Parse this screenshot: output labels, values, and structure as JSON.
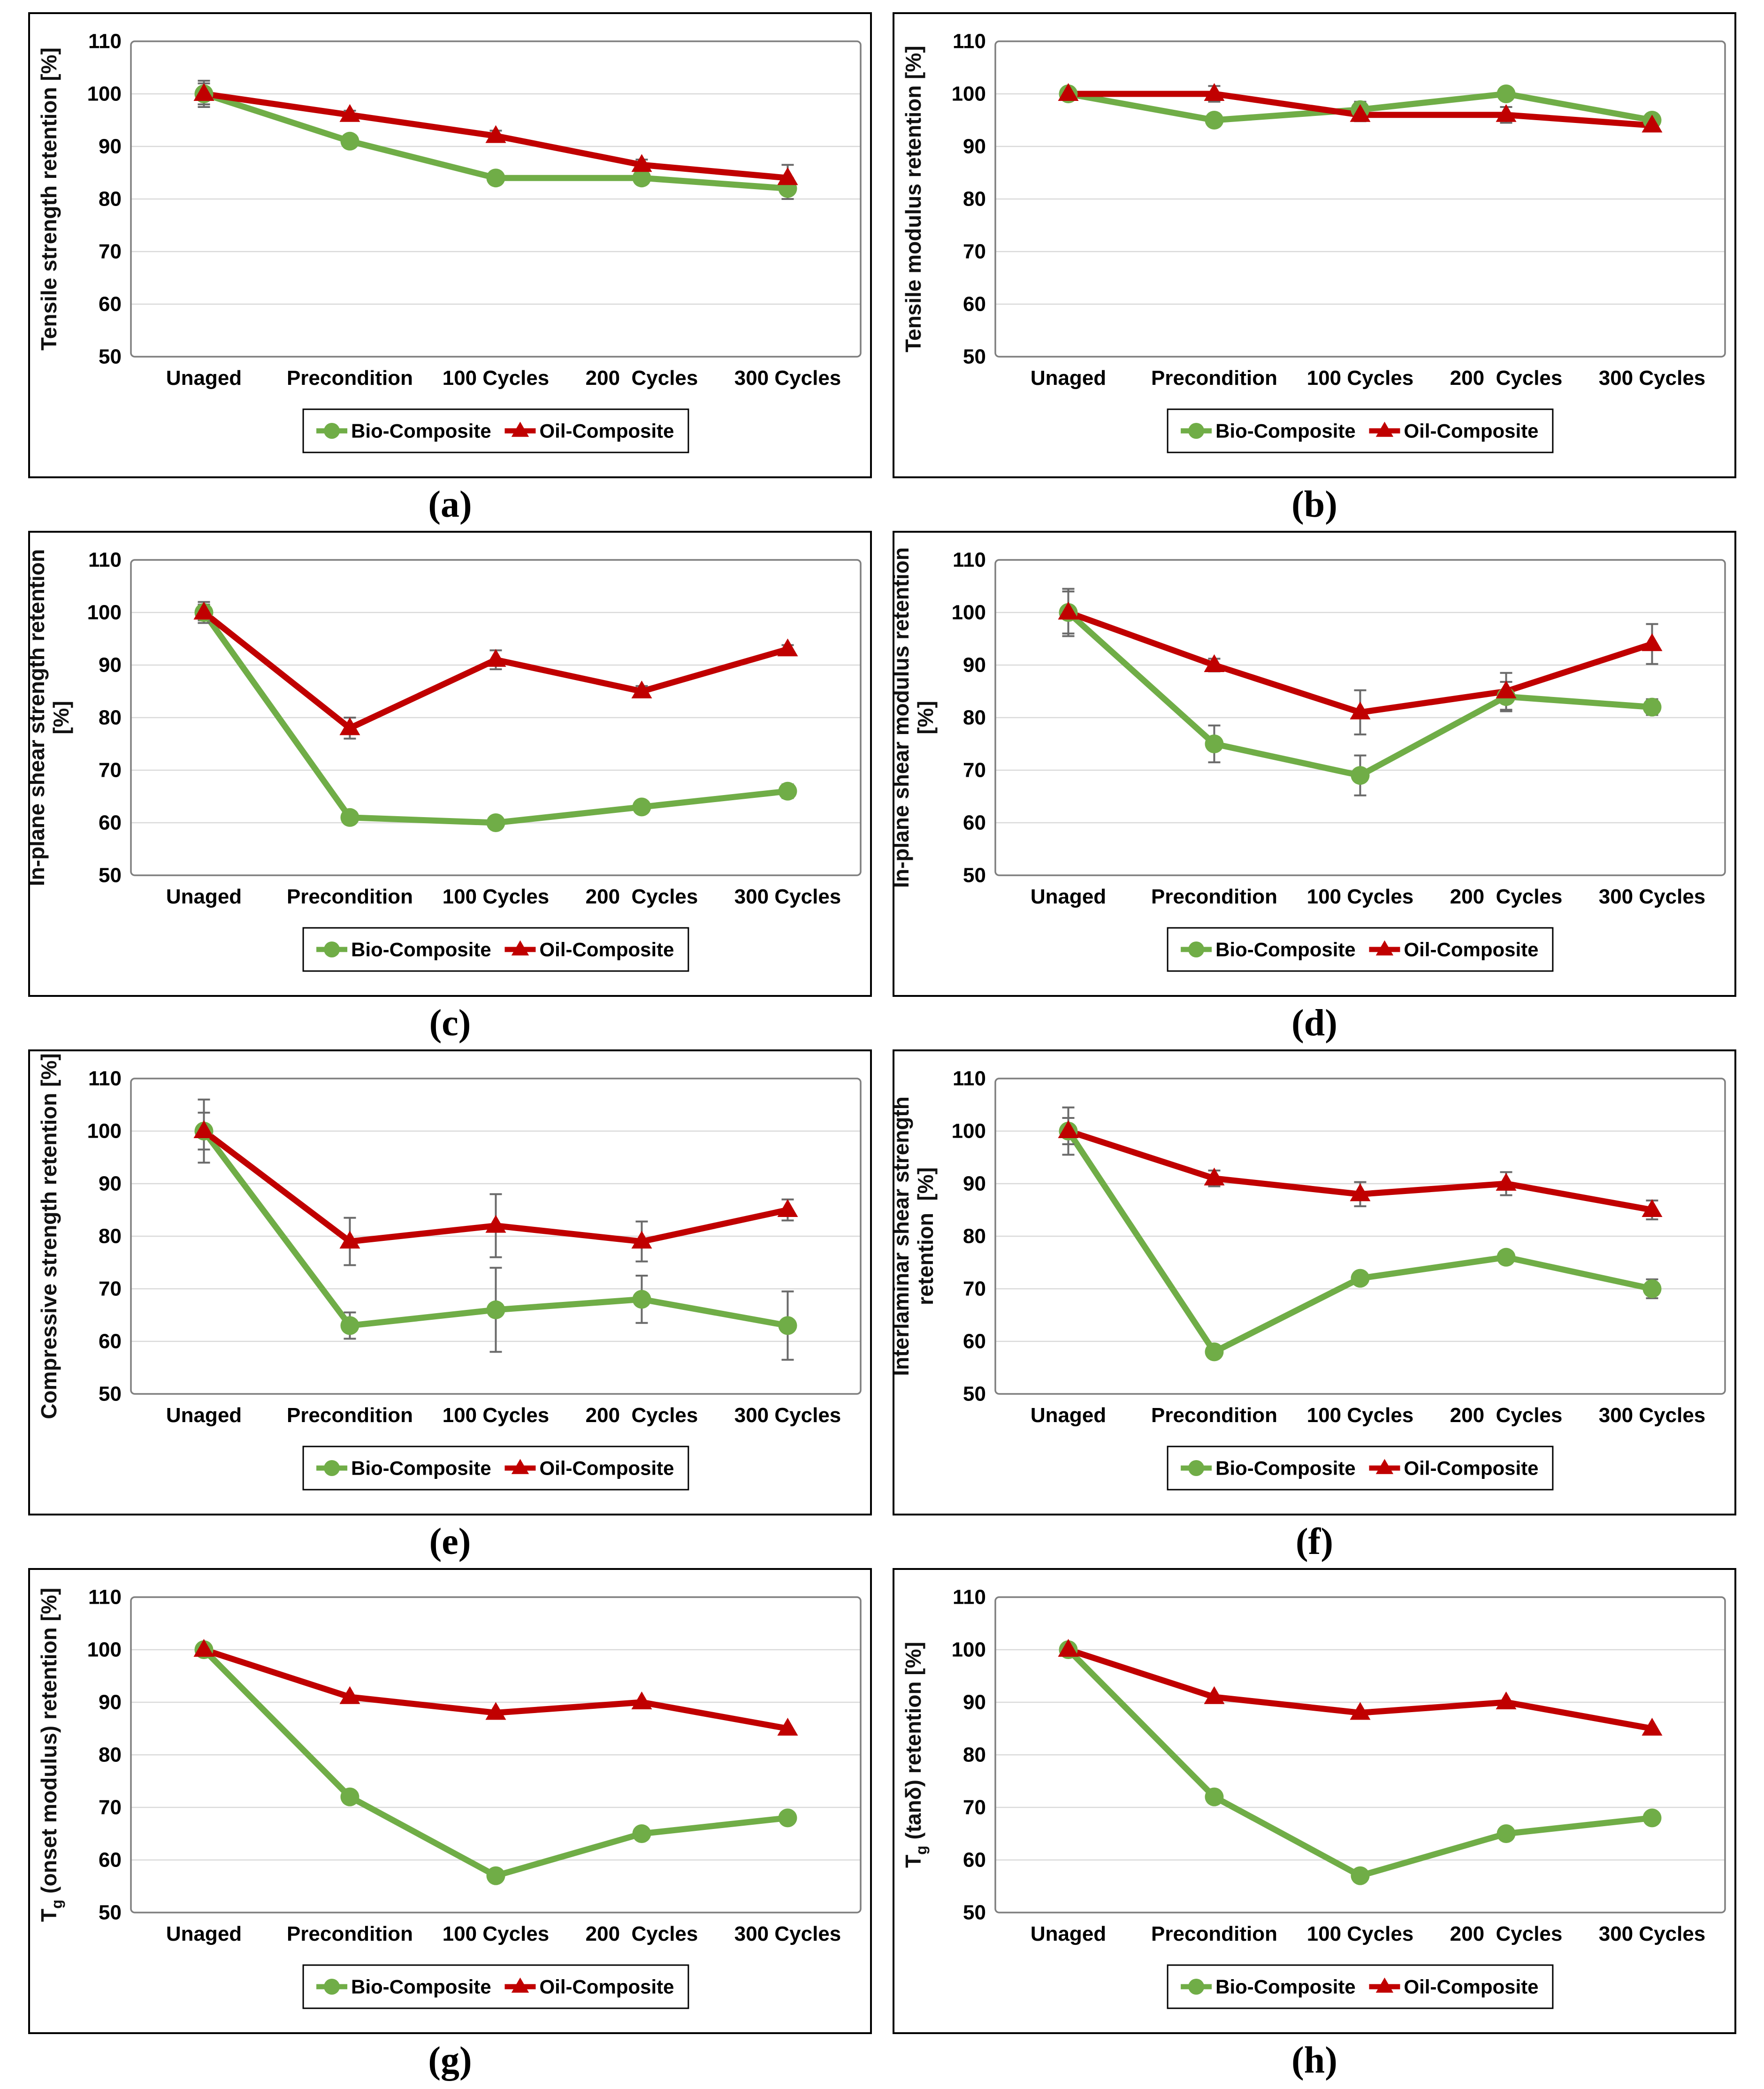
{
  "colors": {
    "bio": "#70AD47",
    "oil": "#C00000",
    "gridline": "#D9D9D9",
    "frame": "#7F7F7F",
    "error_bar": "#6A6A6A",
    "panel_border": "#000000"
  },
  "chart_data": [
    {
      "type": "line",
      "caption": "(a)",
      "ylabel": [
        "Tensile strength retention [%]"
      ],
      "ylim": [
        50,
        110
      ],
      "yticks": [
        50,
        60,
        70,
        80,
        90,
        100,
        110
      ],
      "grid": "horizontal",
      "legend_position": "bottom",
      "categories": [
        "Unaged",
        "Precondition",
        "100 Cycles",
        "200  Cycles",
        "300 Cycles"
      ],
      "series": [
        {
          "name": "Bio-Composite",
          "color": "bio",
          "marker": "circle",
          "values": [
            100,
            91,
            84,
            84,
            82
          ],
          "errors": [
            2.5,
            1,
            1.2,
            1,
            2
          ]
        },
        {
          "name": "Oil-Composite",
          "color": "oil",
          "marker": "triangle",
          "values": [
            100,
            96,
            92,
            86.5,
            84
          ],
          "errors": [
            2,
            0.8,
            1,
            1,
            2.5
          ]
        }
      ]
    },
    {
      "type": "line",
      "caption": "(b)",
      "ylabel": [
        "Tensile modulus retention [%]"
      ],
      "ylim": [
        50,
        110
      ],
      "yticks": [
        50,
        60,
        70,
        80,
        90,
        100,
        110
      ],
      "grid": "horizontal",
      "legend_position": "bottom",
      "categories": [
        "Unaged",
        "Precondition",
        "100 Cycles",
        "200  Cycles",
        "300 Cycles"
      ],
      "series": [
        {
          "name": "Bio-Composite",
          "color": "bio",
          "marker": "circle",
          "values": [
            100,
            95,
            97,
            100,
            95
          ],
          "errors": [
            1,
            1.2,
            1.5,
            1,
            1
          ]
        },
        {
          "name": "Oil-Composite",
          "color": "oil",
          "marker": "triangle",
          "values": [
            100,
            100,
            96,
            96,
            94
          ],
          "errors": [
            1,
            1.5,
            1.2,
            1.5,
            1
          ]
        }
      ]
    },
    {
      "type": "line",
      "caption": "(c)",
      "ylabel": [
        "In-plane shear strength retention",
        "[%]"
      ],
      "ylim": [
        50,
        110
      ],
      "yticks": [
        50,
        60,
        70,
        80,
        90,
        100,
        110
      ],
      "grid": "horizontal",
      "legend_position": "bottom",
      "categories": [
        "Unaged",
        "Precondition",
        "100 Cycles",
        "200  Cycles",
        "300 Cycles"
      ],
      "series": [
        {
          "name": "Bio-Composite",
          "color": "bio",
          "marker": "circle",
          "values": [
            100,
            61,
            60,
            63,
            66
          ],
          "errors": [
            2,
            1,
            0.8,
            0.8,
            1.3
          ]
        },
        {
          "name": "Oil-Composite",
          "color": "oil",
          "marker": "triangle",
          "values": [
            100,
            78,
            91,
            85,
            93
          ],
          "errors": [
            1.5,
            2,
            1.8,
            1,
            0.8
          ]
        }
      ]
    },
    {
      "type": "line",
      "caption": "(d)",
      "ylabel": [
        "In-plane shear modulus retention",
        "[%]"
      ],
      "ylim": [
        50,
        110
      ],
      "yticks": [
        50,
        60,
        70,
        80,
        90,
        100,
        110
      ],
      "grid": "horizontal",
      "legend_position": "bottom",
      "categories": [
        "Unaged",
        "Precondition",
        "100 Cycles",
        "200  Cycles",
        "300 Cycles"
      ],
      "series": [
        {
          "name": "Bio-Composite",
          "color": "bio",
          "marker": "circle",
          "values": [
            100,
            75,
            69,
            84,
            82
          ],
          "errors": [
            4.5,
            3.5,
            3.8,
            2.8,
            1.5
          ]
        },
        {
          "name": "Oil-Composite",
          "color": "oil",
          "marker": "triangle",
          "values": [
            100,
            90,
            81,
            85,
            94
          ],
          "errors": [
            4,
            1.2,
            4.2,
            3.5,
            3.8
          ]
        }
      ]
    },
    {
      "type": "line",
      "caption": "(e)",
      "ylabel": [
        "Compressive strength retention [%]"
      ],
      "ylim": [
        50,
        110
      ],
      "yticks": [
        50,
        60,
        70,
        80,
        90,
        100,
        110
      ],
      "grid": "horizontal",
      "legend_position": "bottom",
      "categories": [
        "Unaged",
        "Precondition",
        "100 Cycles",
        "200  Cycles",
        "300 Cycles"
      ],
      "series": [
        {
          "name": "Bio-Composite",
          "color": "bio",
          "marker": "circle",
          "values": [
            100,
            63,
            66,
            68,
            63
          ],
          "errors": [
            6,
            2.5,
            8,
            4.5,
            6.5
          ]
        },
        {
          "name": "Oil-Composite",
          "color": "oil",
          "marker": "triangle",
          "values": [
            100,
            79,
            82,
            79,
            85
          ],
          "errors": [
            3.5,
            4.5,
            6,
            3.8,
            2
          ]
        }
      ]
    },
    {
      "type": "line",
      "caption": "(f)",
      "ylabel": [
        "Interlaminar shear strength",
        "retention  [%]"
      ],
      "ylim": [
        50,
        110
      ],
      "yticks": [
        50,
        60,
        70,
        80,
        90,
        100,
        110
      ],
      "grid": "horizontal",
      "legend_position": "bottom",
      "categories": [
        "Unaged",
        "Precondition",
        "100 Cycles",
        "200  Cycles",
        "300 Cycles"
      ],
      "series": [
        {
          "name": "Bio-Composite",
          "color": "bio",
          "marker": "circle",
          "values": [
            100,
            58,
            72,
            76,
            70
          ],
          "errors": [
            4.5,
            1,
            1,
            1.2,
            1.8
          ]
        },
        {
          "name": "Oil-Composite",
          "color": "oil",
          "marker": "triangle",
          "values": [
            100,
            91,
            88,
            90,
            85
          ],
          "errors": [
            2.5,
            1.5,
            2.3,
            2.2,
            1.8
          ]
        }
      ]
    },
    {
      "type": "line",
      "caption": "(g)",
      "ylabel": [
        "T_g (onset modulus) retention [%]"
      ],
      "ylim": [
        50,
        110
      ],
      "yticks": [
        50,
        60,
        70,
        80,
        90,
        100,
        110
      ],
      "grid": "horizontal",
      "legend_position": "bottom",
      "categories": [
        "Unaged",
        "Precondition",
        "100 Cycles",
        "200  Cycles",
        "300 Cycles"
      ],
      "series": [
        {
          "name": "Bio-Composite",
          "color": "bio",
          "marker": "circle",
          "values": [
            100,
            72,
            57,
            65,
            68
          ],
          "errors": [
            0,
            0,
            0,
            0,
            0
          ]
        },
        {
          "name": "Oil-Composite",
          "color": "oil",
          "marker": "triangle",
          "values": [
            100,
            91,
            88,
            90,
            85
          ],
          "errors": [
            0,
            0,
            0,
            0,
            0
          ]
        }
      ]
    },
    {
      "type": "line",
      "caption": "(h)",
      "ylabel": [
        "T_g (tanδ) retention [%]"
      ],
      "ylim": [
        50,
        110
      ],
      "yticks": [
        50,
        60,
        70,
        80,
        90,
        100,
        110
      ],
      "grid": "horizontal",
      "legend_position": "bottom",
      "categories": [
        "Unaged",
        "Precondition",
        "100 Cycles",
        "200  Cycles",
        "300 Cycles"
      ],
      "series": [
        {
          "name": "Bio-Composite",
          "color": "bio",
          "marker": "circle",
          "values": [
            100,
            72,
            57,
            65,
            68
          ],
          "errors": [
            0,
            0,
            0,
            0,
            0
          ]
        },
        {
          "name": "Oil-Composite",
          "color": "oil",
          "marker": "triangle",
          "values": [
            100,
            91,
            88,
            90,
            85
          ],
          "errors": [
            0,
            0,
            0,
            0,
            0
          ]
        }
      ]
    }
  ]
}
